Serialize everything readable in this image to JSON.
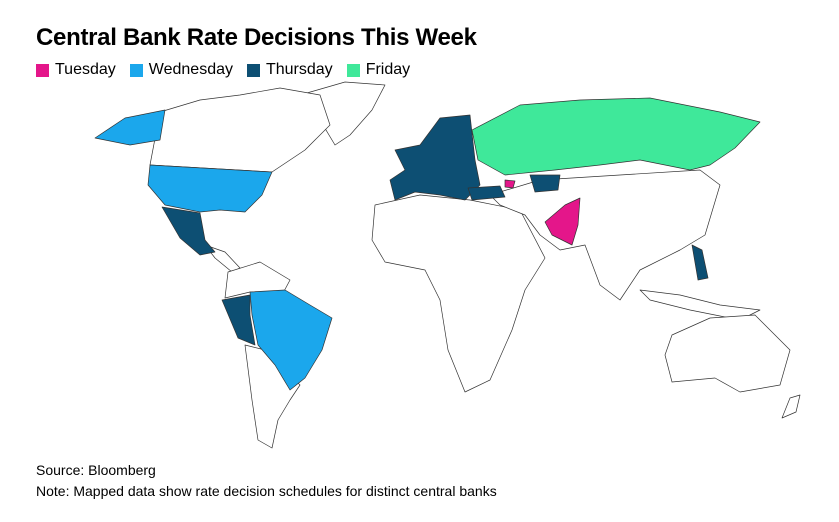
{
  "title": "Central Bank Rate Decisions This Week",
  "legend": [
    {
      "label": "Tuesday",
      "color": "#e4168a"
    },
    {
      "label": "Wednesday",
      "color": "#1ba7ec"
    },
    {
      "label": "Thursday",
      "color": "#0d4f73"
    },
    {
      "label": "Friday",
      "color": "#3fe89a"
    }
  ],
  "source": "Source: Bloomberg",
  "note": "Note: Mapped data show rate decision schedules for distinct central banks"
}
